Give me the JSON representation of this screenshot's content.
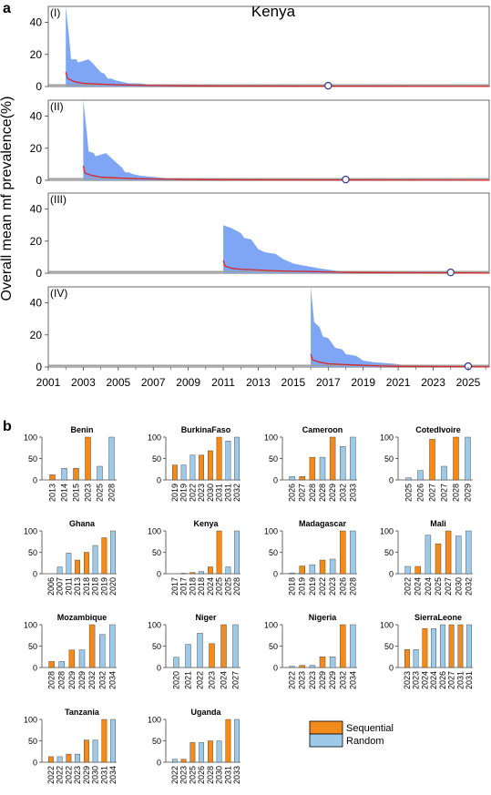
{
  "panel_a": {
    "label": "a",
    "title": "Kenya",
    "ylabel": "Overall mean mf prevalence(%)",
    "x_ticks": [
      "2001",
      "2003",
      "2005",
      "2007",
      "2009",
      "2011",
      "2013",
      "2015",
      "2017",
      "2019",
      "2021",
      "2023",
      "2025"
    ],
    "y_ticks": [
      "0",
      "20",
      "40"
    ]
  },
  "panel_b": {
    "label": "b",
    "legend": {
      "sequential": "Sequential",
      "random": "Random"
    }
  },
  "colors": {
    "sequential": "#f28a1c",
    "random": "#9ecae9",
    "band": "#7ea6f4",
    "median_line": "#d6262b",
    "threshold_line": "#9e9e9e",
    "marker_fill": "#ffffff",
    "marker_stroke": "#2b3a8c"
  },
  "chart_data": [
    {
      "type": "area",
      "title": "Kenya",
      "ylabel": "Overall mean mf prevalence(%)",
      "xlim": [
        2001,
        2026.2
      ],
      "ylim": [
        0,
        50
      ],
      "series": [
        {
          "name": "(I)",
          "start": 2002.0,
          "elimination_year": 2017,
          "upper": [
            [
              2002.0,
              50
            ],
            [
              2002.2,
              30
            ],
            [
              2002.3,
              17
            ],
            [
              2002.6,
              17
            ],
            [
              2002.7,
              15
            ],
            [
              2003.3,
              17
            ],
            [
              2003.5,
              15
            ],
            [
              2004.0,
              9
            ],
            [
              2004.2,
              8
            ],
            [
              2004.4,
              5
            ],
            [
              2004.6,
              5
            ],
            [
              2004.8,
              4
            ],
            [
              2005.2,
              3
            ],
            [
              2005.6,
              2
            ],
            [
              2006.2,
              2
            ],
            [
              2007.0,
              1
            ],
            [
              2008.5,
              0.5
            ],
            [
              2026.2,
              0.2
            ]
          ],
          "median": [
            [
              2002.0,
              9
            ],
            [
              2002.1,
              5
            ],
            [
              2002.5,
              3
            ],
            [
              2003,
              2
            ],
            [
              2004,
              1.5
            ],
            [
              2005,
              1
            ],
            [
              2007,
              0.6
            ],
            [
              2009,
              0.4
            ],
            [
              2012,
              0.3
            ],
            [
              2016,
              0.2
            ],
            [
              2026.2,
              0.1
            ]
          ]
        },
        {
          "name": "(II)",
          "start": 2003.0,
          "elimination_year": 2018,
          "upper": [
            [
              2003.0,
              50
            ],
            [
              2003.2,
              30
            ],
            [
              2003.3,
              18
            ],
            [
              2003.6,
              17
            ],
            [
              2003.7,
              15
            ],
            [
              2004.3,
              17
            ],
            [
              2004.5,
              15
            ],
            [
              2005.0,
              10
            ],
            [
              2005.2,
              8
            ],
            [
              2005.4,
              5
            ],
            [
              2005.6,
              5
            ],
            [
              2005.8,
              4
            ],
            [
              2006.2,
              3
            ],
            [
              2006.6,
              2.5
            ],
            [
              2007.2,
              2
            ],
            [
              2008.0,
              1
            ],
            [
              2009.5,
              0.5
            ],
            [
              2026.2,
              0.2
            ]
          ],
          "median": [
            [
              2003.0,
              9
            ],
            [
              2003.1,
              4.5
            ],
            [
              2003.5,
              3
            ],
            [
              2004,
              2
            ],
            [
              2005,
              1.5
            ],
            [
              2006,
              1
            ],
            [
              2008,
              0.6
            ],
            [
              2010,
              0.4
            ],
            [
              2013,
              0.3
            ],
            [
              2017,
              0.2
            ],
            [
              2026.2,
              0.1
            ]
          ]
        },
        {
          "name": "(III)",
          "start": 2011.0,
          "elimination_year": 2024,
          "upper": [
            [
              2011.0,
              30
            ],
            [
              2011.5,
              28
            ],
            [
              2012.0,
              25
            ],
            [
              2012.2,
              22
            ],
            [
              2012.6,
              21
            ],
            [
              2013.0,
              15
            ],
            [
              2013.4,
              13
            ],
            [
              2014.0,
              12
            ],
            [
              2014.4,
              9
            ],
            [
              2015.0,
              6
            ],
            [
              2015.5,
              5
            ],
            [
              2016.0,
              4
            ],
            [
              2016.5,
              3
            ],
            [
              2017.5,
              1.5
            ],
            [
              2018.5,
              1
            ],
            [
              2020.0,
              0.5
            ],
            [
              2026.2,
              0.2
            ]
          ],
          "median": [
            [
              2011.0,
              8
            ],
            [
              2011.1,
              4.5
            ],
            [
              2011.5,
              3
            ],
            [
              2012,
              2.5
            ],
            [
              2013,
              2
            ],
            [
              2014,
              1.5
            ],
            [
              2015,
              1.2
            ],
            [
              2016,
              1
            ],
            [
              2017.5,
              0.6
            ],
            [
              2019,
              0.4
            ],
            [
              2022,
              0.3
            ],
            [
              2026.2,
              0.1
            ]
          ]
        },
        {
          "name": "(IV)",
          "start": 2016.0,
          "elimination_year": 2025,
          "upper": [
            [
              2016.0,
              50
            ],
            [
              2016.2,
              28
            ],
            [
              2016.5,
              25
            ],
            [
              2016.7,
              19
            ],
            [
              2017.0,
              18
            ],
            [
              2017.4,
              12
            ],
            [
              2017.8,
              11
            ],
            [
              2018.0,
              8
            ],
            [
              2018.6,
              7
            ],
            [
              2019.0,
              4
            ],
            [
              2019.6,
              3
            ],
            [
              2020.2,
              2.5
            ],
            [
              2020.8,
              2
            ],
            [
              2021.5,
              1
            ],
            [
              2023.0,
              0.5
            ],
            [
              2026.2,
              0.2
            ]
          ],
          "median": [
            [
              2016.0,
              8
            ],
            [
              2016.1,
              4.5
            ],
            [
              2016.5,
              3
            ],
            [
              2017,
              2
            ],
            [
              2018,
              1.5
            ],
            [
              2019,
              1
            ],
            [
              2020,
              0.6
            ],
            [
              2021,
              0.4
            ],
            [
              2023,
              0.3
            ],
            [
              2026.2,
              0.1
            ]
          ]
        }
      ]
    },
    {
      "type": "bar",
      "ylim": [
        0,
        100
      ],
      "y_ticks": [
        "0",
        "50",
        "100"
      ],
      "series_names": [
        "Sequential",
        "Random"
      ],
      "panels": [
        {
          "country": "Benin",
          "labels": [
            "2013",
            "2014",
            "2015",
            "2023",
            "2025",
            "2028"
          ],
          "values": [
            12,
            27,
            27,
            100,
            32,
            100
          ],
          "kinds": [
            "S",
            "R",
            "S",
            "S",
            "R",
            "R"
          ]
        },
        {
          "country": "BurkinaFaso",
          "labels": [
            "2019",
            "2019",
            "2022",
            "2023",
            "2030",
            "2031",
            "2031",
            "2032"
          ],
          "values": [
            35,
            35,
            58,
            58,
            68,
            100,
            91,
            100
          ],
          "kinds": [
            "S",
            "R",
            "R",
            "S",
            "S",
            "S",
            "R",
            "R"
          ]
        },
        {
          "country": "Cameroon",
          "labels": [
            "2026",
            "2027",
            "2028",
            "2028",
            "2029",
            "2032",
            "2033"
          ],
          "values": [
            8,
            8,
            53,
            53,
            100,
            78,
            100
          ],
          "kinds": [
            "R",
            "S",
            "S",
            "R",
            "S",
            "R",
            "R"
          ]
        },
        {
          "country": "Cotedlvoire",
          "labels": [
            "2025",
            "2026",
            "2027",
            "2027",
            "2028",
            "2029"
          ],
          "values": [
            5,
            22,
            95,
            32,
            100,
            100
          ],
          "kinds": [
            "R",
            "R",
            "S",
            "R",
            "S",
            "R"
          ]
        },
        {
          "country": "Ghana",
          "labels": [
            "2006",
            "2007",
            "2011",
            "2013",
            "2018",
            "2018",
            "2019",
            "2020"
          ],
          "values": [
            0,
            16,
            48,
            32,
            50,
            66,
            84,
            100
          ],
          "kinds": [
            "S",
            "R",
            "R",
            "S",
            "S",
            "R",
            "S",
            "R"
          ]
        },
        {
          "country": "Kenya",
          "labels": [
            "2017",
            "2017",
            "2018",
            "2018",
            "2024",
            "2025",
            "2025",
            "2028"
          ],
          "values": [
            0,
            1,
            3,
            5,
            16,
            100,
            16,
            100
          ],
          "kinds": [
            "S",
            "R",
            "S",
            "R",
            "S",
            "S",
            "R",
            "R"
          ]
        },
        {
          "country": "Madagascar",
          "labels": [
            "2018",
            "2019",
            "2019",
            "2022",
            "2023",
            "2026",
            "2028"
          ],
          "values": [
            2,
            18,
            21,
            32,
            34,
            100,
            100
          ],
          "kinds": [
            "R",
            "S",
            "R",
            "S",
            "R",
            "S",
            "R"
          ]
        },
        {
          "country": "Mali",
          "labels": [
            "2022",
            "2024",
            "2024",
            "2025",
            "2027",
            "2030",
            "2032"
          ],
          "values": [
            17,
            17,
            90,
            70,
            100,
            88,
            100
          ],
          "kinds": [
            "R",
            "S",
            "R",
            "S",
            "S",
            "R",
            "R"
          ]
        },
        {
          "country": "Mozambique",
          "labels": [
            "2028",
            "2028",
            "2029",
            "2029",
            "2032",
            "2032",
            "2034"
          ],
          "values": [
            14,
            14,
            41,
            41,
            100,
            77,
            100
          ],
          "kinds": [
            "S",
            "R",
            "S",
            "R",
            "S",
            "R",
            "R"
          ]
        },
        {
          "country": "Niger",
          "labels": [
            "2020",
            "2021",
            "2022",
            "2023",
            "2024",
            "2027"
          ],
          "values": [
            24,
            54,
            80,
            56,
            100,
            100
          ],
          "kinds": [
            "R",
            "R",
            "R",
            "S",
            "S",
            "R"
          ]
        },
        {
          "country": "Nigeria",
          "labels": [
            "2022",
            "2023",
            "2023",
            "2029",
            "2029",
            "2032",
            "2034"
          ],
          "values": [
            3,
            5,
            5,
            25,
            25,
            100,
            100
          ],
          "kinds": [
            "R",
            "S",
            "R",
            "S",
            "R",
            "S",
            "R"
          ]
        },
        {
          "country": "SierraLeone",
          "labels": [
            "2023",
            "2023",
            "2024",
            "2024",
            "2026",
            "2027",
            "2031",
            "2031"
          ],
          "values": [
            42,
            42,
            91,
            91,
            100,
            100,
            100,
            100
          ],
          "kinds": [
            "S",
            "R",
            "S",
            "R",
            "R",
            "S",
            "S",
            "R"
          ]
        },
        {
          "country": "Tanzania",
          "labels": [
            "2022",
            "2022",
            "2022",
            "2023",
            "2029",
            "2030",
            "2031",
            "2034"
          ],
          "values": [
            13,
            13,
            19,
            19,
            52,
            52,
            100,
            100
          ],
          "kinds": [
            "S",
            "R",
            "S",
            "R",
            "S",
            "R",
            "S",
            "R"
          ]
        },
        {
          "country": "Uganda",
          "labels": [
            "2022",
            "2023",
            "2025",
            "2026",
            "2028",
            "2030",
            "2031",
            "2033"
          ],
          "values": [
            7,
            7,
            46,
            46,
            50,
            50,
            100,
            100
          ],
          "kinds": [
            "R",
            "S",
            "S",
            "R",
            "S",
            "R",
            "S",
            "R"
          ]
        }
      ]
    }
  ]
}
